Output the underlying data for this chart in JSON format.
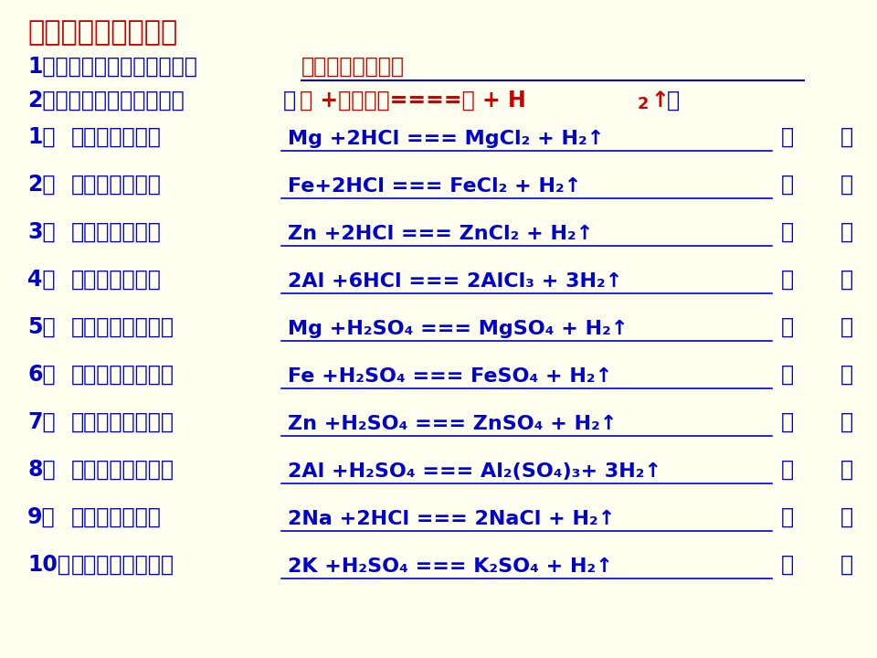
{
  "bg_color": "#FFFFF0",
  "title_color": "#CC0000",
  "blue_color": "#0000CC",
  "red_color": "#CC0000",
  "line_color": "#0000CC",
  "title": "一、酸的化学性质：",
  "line1_label": "1、酸与指示剂的反应：即：",
  "line1_fill": "石酸红，酚酸无。",
  "line2_label": "2、酸与活泼金属的反应：",
  "line2_fill": "（酸 +活泼金属====盐 + H₂↑）",
  "reactions": [
    {
      "num": "1）",
      "label": "镁与盐酸反应：",
      "eq": "Mg +2HCl === MgCl₂ + H₂↑"
    },
    {
      "num": "2）",
      "label": "铁与盐酸反应：",
      "eq": "Fe+2HCl === FeCl₂ + H₂↑"
    },
    {
      "num": "3）",
      "label": "锌与盐酸反应：",
      "eq": "Zn +2HCl === ZnCl₂ + H₂↑"
    },
    {
      "num": "4）",
      "label": "铝与盐酸反应：",
      "eq": "2Al +6HCl === 2AlCl₃ + 3H₂↑"
    },
    {
      "num": "5）",
      "label": "镁与稀硫酸反应：",
      "eq": "Mg +H₂SO₄ === MgSO₄ + H₂↑"
    },
    {
      "num": "6）",
      "label": "铁与稀硫酸反应：",
      "eq": "Fe +H₂SO₄ === FeSO₄ + H₂↑"
    },
    {
      "num": "7）",
      "label": "锌与稀硫酸反应：",
      "eq": "Zn +H₂SO₄ === ZnSO₄ + H₂↑"
    },
    {
      "num": "8）",
      "label": "铝与稀硫酸反应：",
      "eq": "2Al +H₂SO₄ === Al₂(SO₄)₃+ 3H₂↑"
    },
    {
      "num": "9）",
      "label": "钠与盐酸反应：",
      "eq": "2Na +2HCl === 2NaCl + H₂↑"
    },
    {
      "num": "10）",
      "label": "钾与稀硫酸反应：",
      "eq": "2K +H₂SO₄ === K₂SO₄ + H₂↑"
    }
  ]
}
